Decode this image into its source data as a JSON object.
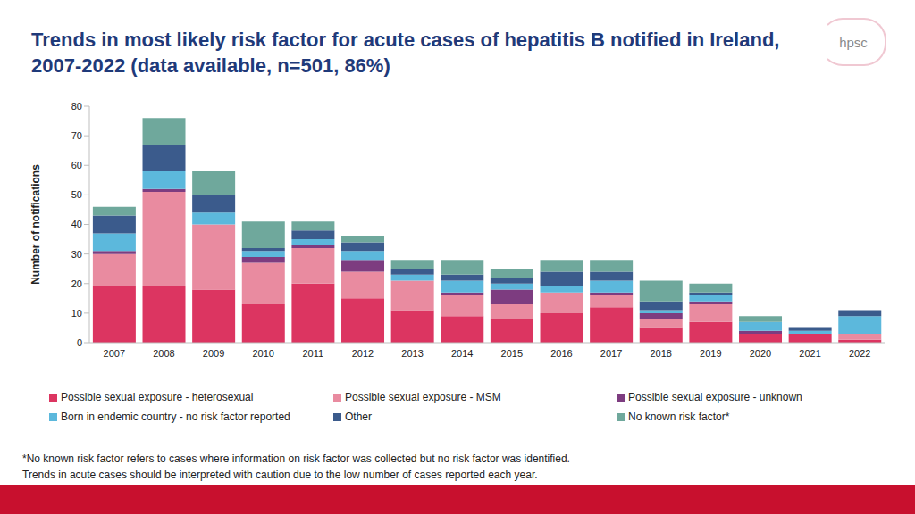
{
  "chart_data": {
    "type": "bar",
    "title": "Trends in most likely risk factor for acute cases of hepatitis B notified in Ireland, 2007-2022 (data available, n=501, 86%)",
    "logo": "hpsc",
    "y_label": "Number of notifications",
    "footnotes": [
      "*No known risk factor refers to cases where information on risk factor was collected but no risk factor was identified.",
      "Trends in acute cases should be interpreted with caution due to the low number of cases reported each year."
    ],
    "categories": [
      "2007",
      "2008",
      "2009",
      "2010",
      "2011",
      "2012",
      "2013",
      "2014",
      "2015",
      "2016",
      "2017",
      "2018",
      "2019",
      "2020",
      "2021",
      "2022"
    ],
    "series": [
      {
        "name": "Possible sexual exposure - heterosexual",
        "color": "#dc3561",
        "values": [
          19,
          19,
          18,
          13,
          20,
          15,
          11,
          9,
          8,
          10,
          12,
          5,
          7,
          3,
          3,
          1
        ]
      },
      {
        "name": "Possible sexual exposure - MSM",
        "color": "#e98ba0",
        "values": [
          11,
          32,
          22,
          14,
          12,
          9,
          10,
          7,
          5,
          7,
          4,
          3,
          6,
          0,
          0,
          2
        ]
      },
      {
        "name": "Possible sexual exposure - unknown",
        "color": "#7d3c80",
        "values": [
          1,
          1,
          0,
          2,
          1,
          4,
          0,
          1,
          5,
          0,
          1,
          2,
          1,
          1,
          0,
          0
        ]
      },
      {
        "name": "Born in endemic country - no risk factor reported",
        "color": "#5cb8dc",
        "values": [
          6,
          6,
          4,
          2,
          2,
          3,
          2,
          4,
          2,
          2,
          4,
          1,
          2,
          3,
          1,
          6
        ]
      },
      {
        "name": "Other",
        "color": "#3b5b8c",
        "values": [
          6,
          9,
          6,
          1,
          3,
          3,
          2,
          2,
          2,
          5,
          3,
          3,
          1,
          0,
          1,
          2
        ]
      },
      {
        "name": "No known risk factor*",
        "color": "#6fa89c",
        "values": [
          3,
          9,
          8,
          9,
          3,
          2,
          3,
          5,
          3,
          4,
          4,
          7,
          3,
          2,
          0,
          0
        ]
      }
    ],
    "ylim": [
      0,
      80
    ],
    "yticks": [
      0,
      10,
      20,
      30,
      40,
      50,
      60,
      70,
      80
    ],
    "stacked": true,
    "grid": false,
    "legend": "bottom"
  }
}
